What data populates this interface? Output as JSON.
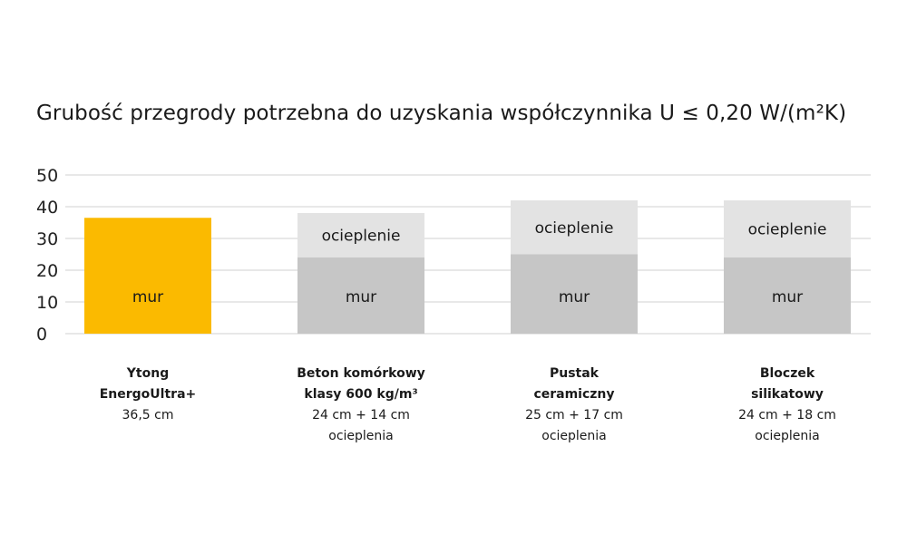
{
  "chart_data": {
    "type": "bar",
    "title": "Grubość przegrody potrzebna do uzyskania współczynnika U ≤ 0,20 W/(m²K)",
    "ylim": [
      0,
      50
    ],
    "yticks": [
      0,
      10,
      20,
      30,
      40,
      50
    ],
    "grid": true,
    "colors": {
      "highlight": "#fbba00",
      "mur": "#c6c6c6",
      "ocieplenie": "#e3e3e3",
      "grid": "#d9d9d9"
    },
    "categories": [
      {
        "name": "Ytong\nEnergoUltra+",
        "description": "36,5 cm"
      },
      {
        "name": "Beton komórkowy\nklasy 600 kg/m³",
        "description": "24 cm + 14 cm\nocieplenia"
      },
      {
        "name": "Pustak\nceramiczny",
        "description": "25 cm + 17 cm\nocieplenia"
      },
      {
        "name": "Bloczek\nsilikatowy",
        "description": "24 cm + 18 cm\nocieplenia"
      }
    ],
    "series": [
      {
        "name": "mur",
        "values": [
          36.5,
          24,
          25,
          24
        ]
      },
      {
        "name": "ocieplenie",
        "values": [
          0,
          14,
          17,
          18
        ]
      }
    ]
  }
}
